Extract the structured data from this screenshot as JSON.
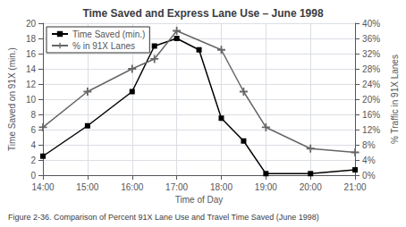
{
  "chart_data": {
    "type": "line",
    "title": "Time Saved and Express Lane Use – June 1998",
    "xlabel": "Time of Day",
    "ylabel": "Time Saved on 91X (min.)",
    "y2label": "% Traffic in 91X Lanes",
    "caption": "Figure 2-36. Comparison of Percent 91X Lane Use and Travel Time Saved (June 1998)",
    "series": [
      {
        "name": "Time Saved (min.)",
        "color": "#000000",
        "marker": "square",
        "x": [
          14.0,
          15.0,
          16.0,
          16.5,
          17.0,
          17.5,
          18.0,
          18.5,
          19.0,
          20.0,
          21.0
        ],
        "values": [
          2.5,
          6.5,
          11.0,
          17.0,
          18.0,
          16.5,
          7.5,
          4.5,
          0.2,
          0.2,
          0.7
        ]
      },
      {
        "name": "% in 91X Lanes",
        "color": "#666666",
        "marker": "plus",
        "axis": "y2",
        "x": [
          14.0,
          15.0,
          16.0,
          16.5,
          17.0,
          18.0,
          18.5,
          19.0,
          20.0,
          21.0
        ],
        "values": [
          12.6,
          22.0,
          28.0,
          30.6,
          38.0,
          33.0,
          22.0,
          12.6,
          7.0,
          6.0
        ]
      }
    ],
    "xlim": [
      14.0,
      21.0
    ],
    "xticks": [
      {
        "value": 14,
        "label": "14:00"
      },
      {
        "value": 15,
        "label": "15:00"
      },
      {
        "value": 16,
        "label": "16:00"
      },
      {
        "value": 17,
        "label": "17:00"
      },
      {
        "value": 18,
        "label": "18:00"
      },
      {
        "value": 19,
        "label": "19:00"
      },
      {
        "value": 20,
        "label": "20:00"
      },
      {
        "value": 21,
        "label": "21:00"
      }
    ],
    "ylim": [
      0,
      20
    ],
    "yticks": [
      0,
      2,
      4,
      6,
      8,
      10,
      12,
      14,
      16,
      18,
      20
    ],
    "y2lim": [
      0,
      40
    ],
    "y2ticks": [
      {
        "value": 0,
        "label": "0%"
      },
      {
        "value": 4,
        "label": "4%"
      },
      {
        "value": 8,
        "label": "8%"
      },
      {
        "value": 12,
        "label": "12%"
      },
      {
        "value": 16,
        "label": "16%"
      },
      {
        "value": 20,
        "label": "20%"
      },
      {
        "value": 24,
        "label": "24%"
      },
      {
        "value": 28,
        "label": "28%"
      },
      {
        "value": 32,
        "label": "32%"
      },
      {
        "value": 36,
        "label": "36%"
      },
      {
        "value": 40,
        "label": "40%"
      }
    ],
    "grid": true,
    "legend": "upper left"
  }
}
